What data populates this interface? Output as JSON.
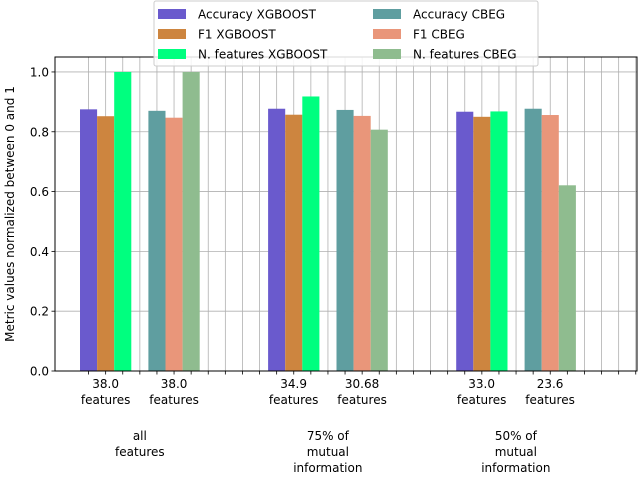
{
  "chart_data": {
    "type": "bar",
    "ylabel": "Metric values normalized between 0 and 1",
    "ylim": [
      0,
      1.05
    ],
    "yticks": [
      0.0,
      0.2,
      0.4,
      0.6,
      0.8,
      1.0
    ],
    "ytick_labels": [
      "0.0",
      "0.2",
      "0.4",
      "0.6",
      "0.8",
      "1.0"
    ],
    "grid": true,
    "legend_position": "top-center",
    "groups": [
      {
        "label": "all\nfeatures",
        "xgboost_label": "38.0\nfeatures",
        "cbeg_label": "38.0\nfeatures",
        "xgboost": {
          "accuracy": 0.875,
          "f1": 0.852,
          "n_features": 1.0
        },
        "cbeg": {
          "accuracy": 0.87,
          "f1": 0.847,
          "n_features": 1.0
        }
      },
      {
        "label": "75% of\nmutual\ninformation",
        "xgboost_label": "34.9\nfeatures",
        "cbeg_label": "30.68\nfeatures",
        "xgboost": {
          "accuracy": 0.877,
          "f1": 0.857,
          "n_features": 0.918
        },
        "cbeg": {
          "accuracy": 0.873,
          "f1": 0.853,
          "n_features": 0.807
        }
      },
      {
        "label": "50% of\nmutual\ninformation",
        "xgboost_label": "33.0\nfeatures",
        "cbeg_label": "23.6\nfeatures",
        "xgboost": {
          "accuracy": 0.867,
          "f1": 0.85,
          "n_features": 0.868
        },
        "cbeg": {
          "accuracy": 0.877,
          "f1": 0.856,
          "n_features": 0.621
        }
      }
    ],
    "series": [
      {
        "name": "Accuracy XGBOOST",
        "model": "xgboost",
        "metric": "accuracy",
        "color": "#6a5acd"
      },
      {
        "name": "F1 XGBOOST",
        "model": "xgboost",
        "metric": "f1",
        "color": "#cd853f"
      },
      {
        "name": "N. features XGBOOST",
        "model": "xgboost",
        "metric": "n_features",
        "color": "#00ff7f"
      },
      {
        "name": "Accuracy CBEG",
        "model": "cbeg",
        "metric": "accuracy",
        "color": "#5f9ea0"
      },
      {
        "name": "F1 CBEG",
        "model": "cbeg",
        "metric": "f1",
        "color": "#e9967a"
      },
      {
        "name": "N. features CBEG",
        "model": "cbeg",
        "metric": "n_features",
        "color": "#8fbc8f"
      }
    ]
  }
}
